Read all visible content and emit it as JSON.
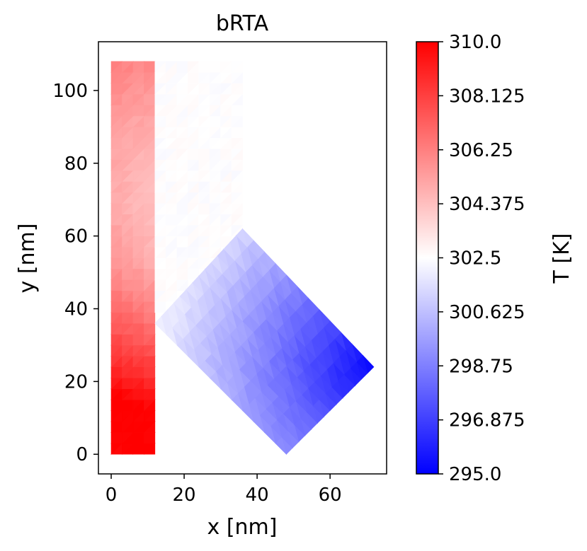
{
  "chart_data": {
    "type": "heatmap",
    "title": "bRTA",
    "xlabel": "x [nm]",
    "ylabel": "y [nm]",
    "xlim": [
      -3.5,
      75.5
    ],
    "ylim": [
      -5.4,
      113.4
    ],
    "x_ticks": [
      0,
      20,
      40,
      60
    ],
    "y_ticks": [
      0,
      20,
      40,
      60,
      80,
      100
    ],
    "grid": false,
    "colormap": "bwr",
    "colormap_colors": {
      "low": "#0000ff",
      "mid": "#ffffff",
      "high": "#ff0000"
    },
    "colorbar": {
      "label": "T [K]",
      "min": 295.0,
      "max": 310.0,
      "tick_labels": [
        "295.0",
        "296.875",
        "298.75",
        "300.625",
        "302.5",
        "304.375",
        "306.25",
        "308.125",
        "310.0"
      ]
    },
    "regions": [
      {
        "name": "vertical bar",
        "vertices": [
          [
            0,
            0
          ],
          [
            12,
            0
          ],
          [
            12,
            36
          ],
          [
            36,
            62
          ],
          [
            36,
            108
          ],
          [
            0,
            108
          ]
        ],
        "T_range": [
          302.3,
          310.0
        ],
        "hot_spot": [
          0,
          0
        ],
        "T_at_hot_spot": 310.0
      },
      {
        "name": "tilted arm",
        "vertices": [
          [
            12,
            36
          ],
          [
            36,
            62
          ],
          [
            72,
            24
          ],
          [
            48,
            0
          ]
        ],
        "T_range": [
          295.0,
          302.5
        ],
        "cold_spot": [
          72,
          24
        ],
        "T_at_cold_spot": 295.0
      }
    ]
  }
}
